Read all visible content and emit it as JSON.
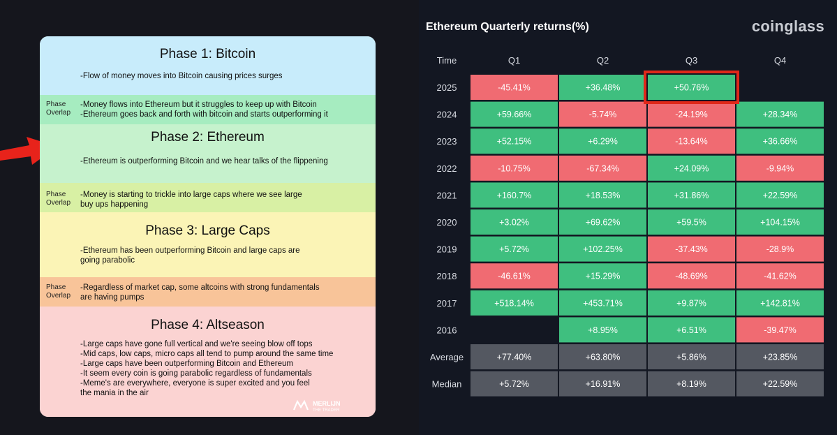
{
  "phases": {
    "phase1": {
      "title": "Phase 1: Bitcoin",
      "text": "-Flow of money moves into Bitcoin causing prices surges"
    },
    "overlap1": {
      "label": "Phase\nOverlap",
      "text": "-Money flows into Ethereum but it struggles to keep up with Bitcoin\n-Ethereum goes back and forth with bitcoin and starts outperforming it"
    },
    "phase2": {
      "title": "Phase 2: Ethereum",
      "text": "-Ethereum is outperforming Bitcoin and we hear talks of the flippening"
    },
    "overlap2": {
      "label": "Phase\nOverlap",
      "text": "-Money is starting to trickle into large caps where we see large\nbuy ups happening"
    },
    "phase3": {
      "title": "Phase 3: Large Caps",
      "text": "-Ethereum has been outperforming Bitcoin and large caps are\ngoing parabolic"
    },
    "overlap3": {
      "label": "Phase\nOverlap",
      "text": "-Regardless of market cap, some altcoins with strong fundamentals\nare having pumps"
    },
    "phase4": {
      "title": "Phase 4: Altseason",
      "text": "-Large caps have gone full vertical and we're seeing blow off tops\n-Mid caps, low caps, micro caps all tend to pump around the same time\n-Large caps have been outperforming Bitcoin and Ethereum\n-It seem every coin is going parabolic regardless of fundamentals\n-Meme's are everywhere, everyone is super excited and you feel\nthe mania in the air"
    },
    "logo_text": "MERLIJN\nTHE TRADER"
  },
  "colors": {
    "phase1": "#c8ecfb",
    "overlap1": "#a6ecc0",
    "phase2": "#c6f2cd",
    "overlap2": "#d8f0a4",
    "phase3": "#fbf4b6",
    "overlap3": "#f8c499",
    "phase4": "#fbd3d2",
    "positive": "#3fbf7f",
    "negative": "#f06b72",
    "summary": "#545861",
    "highlight": "#e0281a",
    "arrow": "#e8231b"
  },
  "chart_data": {
    "type": "table",
    "title": "Ethereum Quarterly returns(%)",
    "brand": "coinglass",
    "corner_label": "Time",
    "columns": [
      "Q1",
      "Q2",
      "Q3",
      "Q4"
    ],
    "rows": [
      {
        "label": "2025",
        "values": [
          "-45.41%",
          "+36.48%",
          "+50.76%",
          ""
        ]
      },
      {
        "label": "2024",
        "values": [
          "+59.66%",
          "-5.74%",
          "-24.19%",
          "+28.34%"
        ]
      },
      {
        "label": "2023",
        "values": [
          "+52.15%",
          "+6.29%",
          "-13.64%",
          "+36.66%"
        ]
      },
      {
        "label": "2022",
        "values": [
          "-10.75%",
          "-67.34%",
          "+24.09%",
          "-9.94%"
        ]
      },
      {
        "label": "2021",
        "values": [
          "+160.7%",
          "+18.53%",
          "+31.86%",
          "+22.59%"
        ]
      },
      {
        "label": "2020",
        "values": [
          "+3.02%",
          "+69.62%",
          "+59.5%",
          "+104.15%"
        ]
      },
      {
        "label": "2019",
        "values": [
          "+5.72%",
          "+102.25%",
          "-37.43%",
          "-28.9%"
        ]
      },
      {
        "label": "2018",
        "values": [
          "-46.61%",
          "+15.29%",
          "-48.69%",
          "-41.62%"
        ]
      },
      {
        "label": "2017",
        "values": [
          "+518.14%",
          "+453.71%",
          "+9.87%",
          "+142.81%"
        ]
      },
      {
        "label": "2016",
        "values": [
          "",
          "+8.95%",
          "+6.51%",
          "-39.47%"
        ]
      }
    ],
    "summary_rows": [
      {
        "label": "Average",
        "values": [
          "+77.40%",
          "+63.80%",
          "+5.86%",
          "+23.85%"
        ]
      },
      {
        "label": "Median",
        "values": [
          "+5.72%",
          "+16.91%",
          "+8.19%",
          "+22.59%"
        ]
      }
    ],
    "highlighted_cell": {
      "row": "2025",
      "column": "Q3"
    }
  }
}
